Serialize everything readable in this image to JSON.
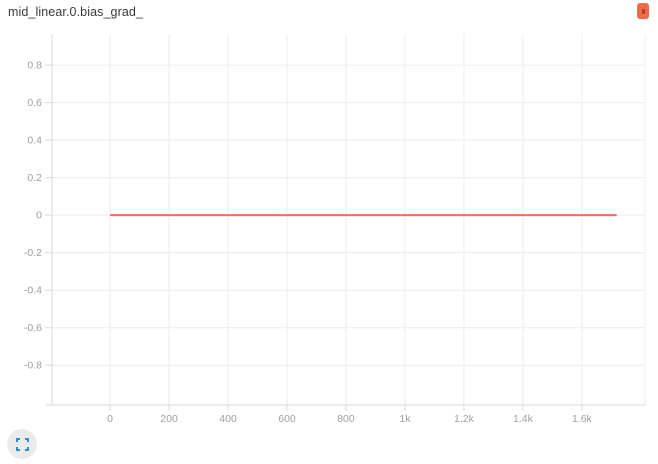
{
  "header": {
    "title": "mid_linear.0.bias_grad_"
  },
  "colors": {
    "accent_line": "#fa6c4e",
    "handle": "#f2694a",
    "handle_dot": "#a84226",
    "grid": "#ececec",
    "axis": "#d9d9d9",
    "tick_label": "#9e9e9e",
    "title_text": "#3a3a3a",
    "fullscreen_bg": "#ebebeb",
    "fullscreen_icon": "#2a93d5"
  },
  "chart_data": {
    "type": "line",
    "title": "mid_linear.0.bias_grad_",
    "xlabel": "",
    "ylabel": "",
    "grid": true,
    "legend": "none",
    "xlim": [
      -197,
      1814
    ],
    "ylim": [
      -1.012,
      0.966
    ],
    "x_ticks": [
      {
        "value": 0,
        "label": "0"
      },
      {
        "value": 200,
        "label": "200"
      },
      {
        "value": 400,
        "label": "400"
      },
      {
        "value": 600,
        "label": "600"
      },
      {
        "value": 800,
        "label": "800"
      },
      {
        "value": 1000,
        "label": "1k"
      },
      {
        "value": 1200,
        "label": "1.2k"
      },
      {
        "value": 1400,
        "label": "1.4k"
      },
      {
        "value": 1600,
        "label": "1.6k"
      }
    ],
    "y_ticks": [
      {
        "value": 0.8,
        "label": "0.8"
      },
      {
        "value": 0.6,
        "label": "0.6"
      },
      {
        "value": 0.4,
        "label": "0.4"
      },
      {
        "value": 0.2,
        "label": "0.2"
      },
      {
        "value": 0,
        "label": "0"
      },
      {
        "value": -0.2,
        "label": "-0.2"
      },
      {
        "value": -0.4,
        "label": "-0.4"
      },
      {
        "value": -0.6,
        "label": "-0.6"
      },
      {
        "value": -0.8,
        "label": "-0.8"
      }
    ],
    "series": [
      {
        "name": "mid_linear.0.bias_grad_",
        "color": "#fa6c4e",
        "points": [
          [
            0,
            0
          ],
          [
            1718,
            0
          ]
        ]
      }
    ]
  }
}
